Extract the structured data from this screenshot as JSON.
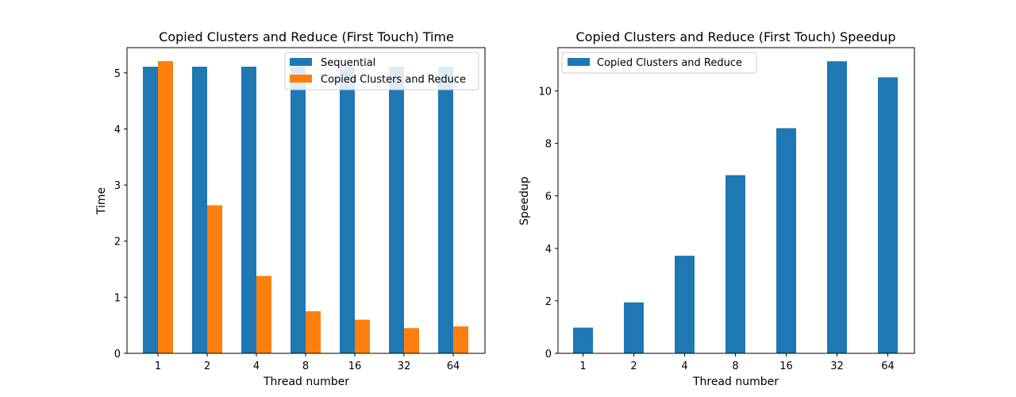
{
  "chart_data": [
    {
      "type": "bar",
      "title": "Copied Clusters and Reduce (First Touch) Time",
      "xlabel": "Thread number",
      "ylabel": "Time",
      "categories": [
        "1",
        "2",
        "4",
        "8",
        "16",
        "32",
        "64"
      ],
      "ylim": [
        0,
        5.45
      ],
      "yticks": [
        0,
        1,
        2,
        3,
        4,
        5
      ],
      "legend_position": "top-right",
      "series": [
        {
          "name": "Sequential",
          "color": "#1f77b4",
          "values": [
            5.11,
            5.11,
            5.11,
            5.11,
            5.11,
            5.11,
            5.11
          ]
        },
        {
          "name": "Copied Clusters and Reduce",
          "color": "#ff7f0e",
          "values": [
            5.21,
            2.64,
            1.38,
            0.75,
            0.6,
            0.45,
            0.48
          ]
        }
      ]
    },
    {
      "type": "bar",
      "title": "Copied Clusters and Reduce (First Touch) Speedup",
      "xlabel": "Thread number",
      "ylabel": "Speedup",
      "categories": [
        "1",
        "2",
        "4",
        "8",
        "16",
        "32",
        "64"
      ],
      "ylim": [
        0,
        11.65
      ],
      "yticks": [
        0,
        2,
        4,
        6,
        8,
        10
      ],
      "legend_position": "top-left",
      "series": [
        {
          "name": "Copied Clusters and Reduce",
          "color": "#1f77b4",
          "values": [
            0.98,
            1.94,
            3.72,
            6.79,
            8.58,
            11.13,
            10.52
          ]
        }
      ]
    }
  ]
}
